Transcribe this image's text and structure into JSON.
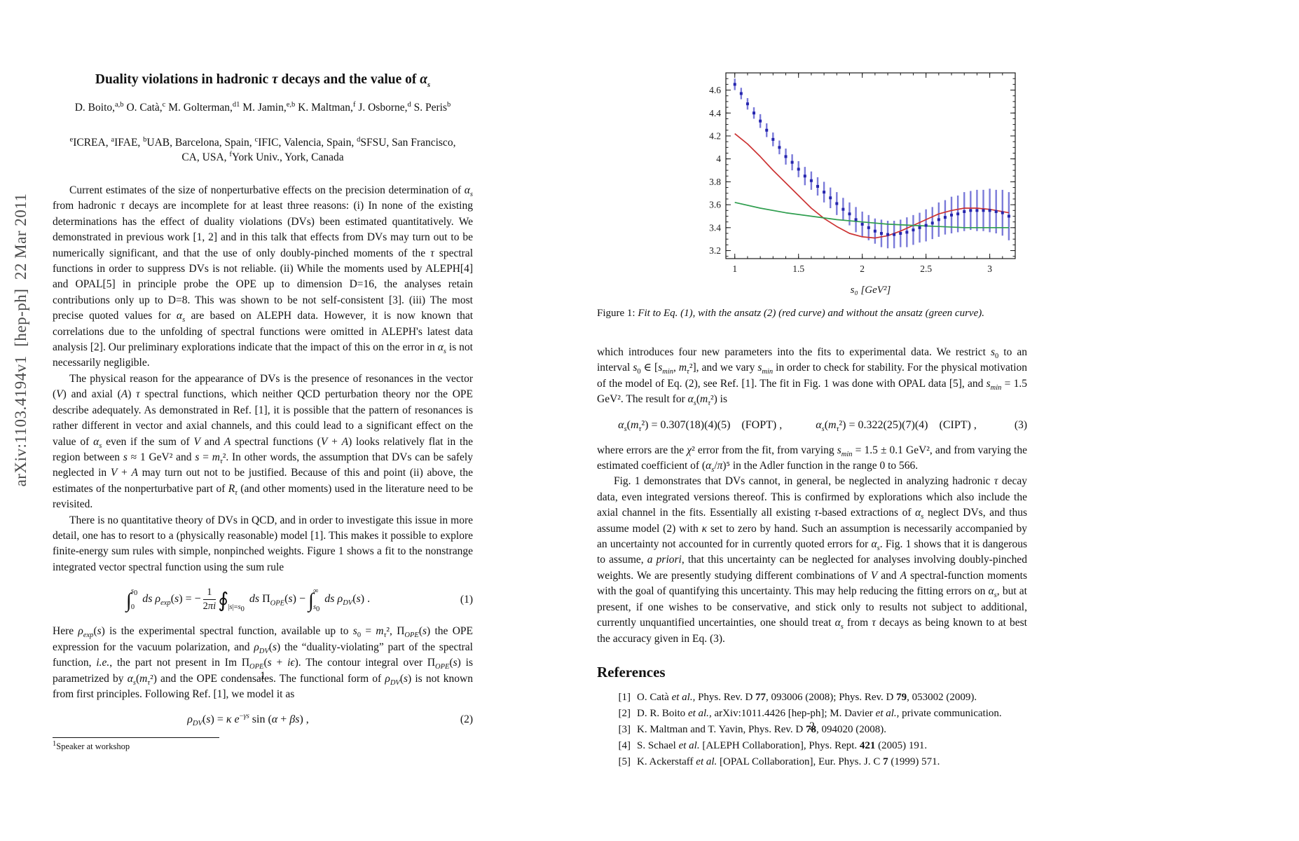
{
  "arxiv_banner": "arXiv:1103.4194v1  [hep-ph]  22 Mar 2011",
  "page1": {
    "title": "Duality violations in hadronic <i>τ</i> decays and the value of <i>α<sub>s</sub></i>",
    "authors": "D. Boito,<sup>a,b</sup> O. Catà,<sup>c</sup> M. Golterman,<sup>d1</sup> M. Jamin,<sup>e,b</sup> K. Maltman,<sup>f</sup> J. Osborne,<sup>d</sup> S. Peris<sup>b</sup>",
    "affiliations_line1": "<sup>e</sup>ICREA, <sup>a</sup>IFAE, <sup>b</sup>UAB, Barcelona, Spain, <sup>c</sup>IFIC, Valencia, Spain, <sup>d</sup>SFSU, San Francisco,",
    "affiliations_line2": "CA, USA, <sup>f</sup>York Univ., York, Canada",
    "para1": "Current estimates of the size of nonperturbative effects on the precision determination of <i>α<sub>s</sub></i> from hadronic <i>τ</i> decays are incomplete for at least three reasons: (i) In none of the existing determinations has the effect of duality violations (DVs) been estimated quantitatively. We demonstrated in previous work [1, 2] and in this talk that effects from DVs may turn out to be numerically significant, and that the use of only doubly-pinched moments of the <i>τ</i> spectral functions in order to suppress DVs is not reliable. (ii) While the moments used by ALEPH[4] and OPAL[5] in principle probe the OPE up to dimension D=16, the analyses retain contributions only up to D=8. This was shown to be not self-consistent [3]. (iii) The most precise quoted values for <i>α<sub>s</sub></i> are based on ALEPH data. However, it is now known that correlations due to the unfolding of spectral functions were omitted in ALEPH's latest data analysis [2]. Our preliminary explorations indicate that the impact of this on the error in <i>α<sub>s</sub></i> is not necessarily negligible.",
    "para2": "The physical reason for the appearance of DVs is the presence of resonances in the vector (<i>V</i>) and axial (<i>A</i>) <i>τ</i> spectral functions, which neither QCD perturbation theory nor the OPE describe adequately. As demonstrated in Ref. [1], it is possible that the pattern of resonances is rather different in vector and axial channels, and this could lead to a significant effect on the value of <i>α<sub>s</sub></i> even if the sum of <i>V</i> and <i>A</i> spectral functions (<i>V</i> + <i>A</i>) looks relatively flat in the region between <i>s</i> ≈ 1 GeV² and <i>s</i> = <i>m<sub>τ</sub></i>². In other words, the assumption that DVs can be safely neglected in <i>V</i> + <i>A</i> may turn out not to be justified. Because of this and point (ii) above, the estimates of the nonperturbative part of <i>R<sub>τ</sub></i> (and other moments) used in the literature need to be revisited.",
    "para3": "There is no quantitative theory of DVs in QCD, and in order to investigate this issue in more detail, one has to resort to a (physically reasonable) model [1]. This makes it possible to explore finite-energy sum rules with simple, nonpinched weights. Figure 1 shows a fit to the nonstrange integrated vector spectral function using the sum rule",
    "eq1": "<span class='bigop'>∫</span><span class='lim'><span class='u'><i>s</i><sub>0</sub></span><span class='l'>0</span></span> <i>ds</i> <i>ρ<sub>exp</sub></i>(<i>s</i>) = −<span class='frac'><span class='fn'>1</span><span class='fd'>2<i>πi</i></span></span><span class='bigop'>∮</span><span class='lim'><span class='u'>&nbsp;</span><span class='l'>|<i>s</i>|=<i>s</i><sub>0</sub></span></span> <i>ds</i> Π<sub><i>OPE</i></sub>(<i>s</i>) − <span class='bigop'>∫</span><span class='lim'><span class='u'>∞</span><span class='l'><i>s</i><sub>0</sub></span></span> <i>ds</i> <i>ρ<sub>DV</sub></i>(<i>s</i>) .",
    "eq1_number": "(1)",
    "para4": "Here <i>ρ<sub>exp</sub></i>(<i>s</i>) is the experimental spectral function, available up to <i>s</i><sub>0</sub> = <i>m<sub>τ</sub></i>², Π<sub><i>OPE</i></sub>(<i>s</i>) the OPE expression for the vacuum polarization, and <i>ρ<sub>DV</sub></i>(<i>s</i>) the “duality-violating” part of the spectral function, <i>i.e.</i>, the part not present in Im Π<sub><i>OPE</i></sub>(<i>s</i> + <i>iϵ</i>). The contour integral over Π<sub><i>OPE</i></sub>(<i>s</i>) is parametrized by <i>α<sub>s</sub></i>(<i>m<sub>τ</sub></i>²) and the OPE condensates. The functional form of <i>ρ<sub>DV</sub></i>(<i>s</i>) is not known from first principles. Following Ref. [1], we model it as",
    "eq2": "<i>ρ<sub>DV</sub></i>(<i>s</i>) = <i>κ</i> <i>e</i><sup>−<i>γs</i></sup> sin (<i>α</i> + <i>βs</i>) ,",
    "eq2_number": "(2)",
    "footnote": "<sup>1</sup>Speaker at workshop",
    "page_number": "1"
  },
  "page2": {
    "figure_caption_label": "Figure 1: ",
    "figure_caption": "Fit to Eq. (1), with the ansatz (2) (red curve) and without the ansatz (green curve).",
    "para1": "which introduces four new parameters into the fits to experimental data. We restrict <i>s</i><sub>0</sub> to an interval <i>s</i><sub>0</sub> ∈ [<i>s<sub>min</sub></i>, <i>m<sub>τ</sub></i>²], and we vary <i>s<sub>min</sub></i> in order to check for stability. For the physical motivation of the model of Eq. (2), see Ref. [1]. The fit in Fig. 1 was done with OPAL data [5], and <i>s<sub>min</sub></i> = 1.5 GeV². The result for <i>α<sub>s</sub></i>(<i>m<sub>τ</sub></i>²) is",
    "eq3": "<i>α<sub>s</sub></i>(<i>m<sub>τ</sub></i>²) = 0.307(18)(4)(5)&emsp;(FOPT) ,&emsp;&emsp;&emsp;<i>α<sub>s</sub></i>(<i>m<sub>τ</sub></i>²) = 0.322(25)(7)(4)&emsp;(CIPT) ,",
    "eq3_number": "(3)",
    "para2": "where errors are the <i>χ</i>² error from the fit, from varying <i>s<sub>min</sub></i> = 1.5 ± 0.1 GeV², and from varying the estimated coefficient of (<i>α<sub>s</sub></i>/<i>π</i>)⁵ in the Adler function in the range 0 to 566.",
    "para3": "Fig. 1 demonstrates that DVs cannot, in general, be neglected in analyzing hadronic <i>τ</i> decay data, even integrated versions thereof. This is confirmed by explorations which also include the axial channel in the fits. Essentially all existing <i>τ</i>-based extractions of <i>α<sub>s</sub></i> neglect DVs, and thus assume model (2) with <i>κ</i> set to zero by hand. Such an assumption is necessarily accompanied by an uncertainty not accounted for in currently quoted errors for <i>α<sub>s</sub></i>. Fig. 1 shows that it is dangerous to assume, <i>a priori</i>, that this uncertainty can be neglected for analyses involving doubly-pinched weights. We are presently studying different combinations of <i>V</i> and <i>A</i> spectral-function moments with the goal of quantifying this uncertainty. This may help reducing the fitting errors on <i>α<sub>s</sub></i>, but at present, if one wishes to be conservative, and stick only to results not subject to additional, currently unquantified uncertainties, one should treat <i>α<sub>s</sub></i> from <i>τ</i> decays as being known to at best the accuracy given in Eq. (3).",
    "references_heading": "References",
    "references": [
      {
        "label": "[1]",
        "text": "O. Catà <i>et al.</i>, Phys. Rev. D <b>77</b>, 093006 (2008); Phys. Rev. D <b>79</b>, 053002 (2009)."
      },
      {
        "label": "[2]",
        "text": "D. R. Boito <i>et al.</i>, arXiv:1011.4426 [hep-ph]; M. Davier <i>et al.</i>, private communication."
      },
      {
        "label": "[3]",
        "text": "K. Maltman and T. Yavin, Phys. Rev. D <b>78</b>, 094020 (2008)."
      },
      {
        "label": "[4]",
        "text": "S. Schael <i>et al.</i> [ALEPH Collaboration], Phys. Rept. <b>421</b> (2005) 191."
      },
      {
        "label": "[5]",
        "text": "K. Ackerstaff <i>et al.</i> [OPAL Collaboration], Eur. Phys. J. C <b>7</b> (1999) 571."
      }
    ],
    "page_number": "2"
  },
  "chart_data": {
    "type": "scatter",
    "title": "",
    "xlabel": "s₀ [GeV²]",
    "ylabel": "",
    "xlim": [
      0.93,
      3.2
    ],
    "ylim": [
      3.13,
      4.75
    ],
    "x_major_ticks": [
      1,
      1.5,
      2,
      2.5,
      3
    ],
    "x_minor_step": 0.1,
    "y_major_ticks": [
      3.2,
      3.4,
      3.6,
      3.8,
      4,
      4.2,
      4.4,
      4.6
    ],
    "y_minor_step": 0.05,
    "grid": false,
    "legend_position": "none",
    "series": [
      {
        "name": "OPAL spectral-function data (points with error bars)",
        "type": "scatter_errorbar",
        "color": "#2525ad",
        "bar_color": "#7b7bd9",
        "points": [
          [
            1.0,
            4.65,
            0.05
          ],
          [
            1.05,
            4.57,
            0.05
          ],
          [
            1.1,
            4.48,
            0.05
          ],
          [
            1.15,
            4.4,
            0.05
          ],
          [
            1.2,
            4.33,
            0.06
          ],
          [
            1.25,
            4.25,
            0.06
          ],
          [
            1.3,
            4.17,
            0.06
          ],
          [
            1.35,
            4.1,
            0.06
          ],
          [
            1.4,
            4.02,
            0.07
          ],
          [
            1.45,
            3.97,
            0.07
          ],
          [
            1.5,
            3.91,
            0.07
          ],
          [
            1.55,
            3.85,
            0.08
          ],
          [
            1.6,
            3.81,
            0.08
          ],
          [
            1.65,
            3.76,
            0.08
          ],
          [
            1.7,
            3.71,
            0.09
          ],
          [
            1.75,
            3.66,
            0.09
          ],
          [
            1.8,
            3.61,
            0.1
          ],
          [
            1.85,
            3.56,
            0.1
          ],
          [
            1.9,
            3.52,
            0.1
          ],
          [
            1.95,
            3.47,
            0.11
          ],
          [
            2.0,
            3.43,
            0.11
          ],
          [
            2.05,
            3.4,
            0.11
          ],
          [
            2.1,
            3.37,
            0.11
          ],
          [
            2.15,
            3.35,
            0.12
          ],
          [
            2.2,
            3.34,
            0.12
          ],
          [
            2.25,
            3.34,
            0.12
          ],
          [
            2.3,
            3.35,
            0.12
          ],
          [
            2.35,
            3.36,
            0.13
          ],
          [
            2.4,
            3.38,
            0.13
          ],
          [
            2.45,
            3.4,
            0.13
          ],
          [
            2.5,
            3.42,
            0.14
          ],
          [
            2.55,
            3.44,
            0.14
          ],
          [
            2.6,
            3.47,
            0.15
          ],
          [
            2.65,
            3.49,
            0.15
          ],
          [
            2.7,
            3.51,
            0.16
          ],
          [
            2.75,
            3.52,
            0.16
          ],
          [
            2.8,
            3.54,
            0.17
          ],
          [
            2.85,
            3.55,
            0.17
          ],
          [
            2.9,
            3.55,
            0.18
          ],
          [
            2.95,
            3.55,
            0.18
          ],
          [
            3.0,
            3.55,
            0.19
          ],
          [
            3.05,
            3.54,
            0.19
          ],
          [
            3.1,
            3.53,
            0.2
          ],
          [
            3.15,
            3.5,
            0.21
          ]
        ]
      },
      {
        "name": "fit with DV ansatz (2) (red curve)",
        "type": "line",
        "color": "#cc3333",
        "points": [
          [
            1.0,
            4.22
          ],
          [
            1.1,
            4.13
          ],
          [
            1.2,
            4.02
          ],
          [
            1.3,
            3.9
          ],
          [
            1.4,
            3.79
          ],
          [
            1.5,
            3.68
          ],
          [
            1.6,
            3.57
          ],
          [
            1.7,
            3.48
          ],
          [
            1.8,
            3.41
          ],
          [
            1.9,
            3.35
          ],
          [
            2.0,
            3.32
          ],
          [
            2.1,
            3.31
          ],
          [
            2.2,
            3.33
          ],
          [
            2.3,
            3.37
          ],
          [
            2.4,
            3.42
          ],
          [
            2.5,
            3.47
          ],
          [
            2.6,
            3.52
          ],
          [
            2.7,
            3.55
          ],
          [
            2.8,
            3.57
          ],
          [
            2.9,
            3.57
          ],
          [
            3.0,
            3.56
          ],
          [
            3.1,
            3.54
          ],
          [
            3.15,
            3.53
          ]
        ]
      },
      {
        "name": "fit without DV ansatz (green curve)",
        "type": "line",
        "color": "#2f9e4f",
        "points": [
          [
            1.0,
            3.62
          ],
          [
            1.2,
            3.57
          ],
          [
            1.4,
            3.53
          ],
          [
            1.6,
            3.5
          ],
          [
            1.8,
            3.47
          ],
          [
            2.0,
            3.45
          ],
          [
            2.2,
            3.43
          ],
          [
            2.4,
            3.42
          ],
          [
            2.6,
            3.41
          ],
          [
            2.8,
            3.4
          ],
          [
            3.0,
            3.4
          ],
          [
            3.15,
            3.4
          ]
        ]
      }
    ]
  }
}
